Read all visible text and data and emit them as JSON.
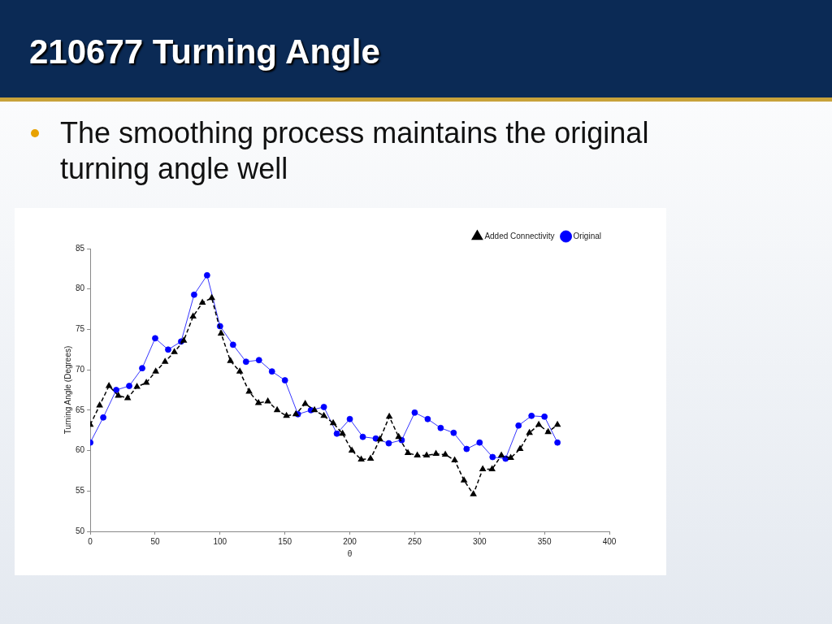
{
  "chart_data": {
    "type": "line",
    "title": "210677 Turning Angle",
    "subtitle": "The smoothing process maintains the original turning angle well",
    "xlabel": "θ",
    "ylabel": "Turning Angle (Degrees)",
    "xlim": [
      0,
      400
    ],
    "xticks": [
      0,
      50,
      100,
      150,
      200,
      250,
      300,
      350,
      400
    ],
    "ylim": [
      50,
      85
    ],
    "yticks": [
      50,
      55,
      60,
      65,
      70,
      75,
      80,
      85
    ],
    "grid": false,
    "legend": "top right",
    "series": [
      {
        "name": "Added Connectivity",
        "color": "#000000",
        "marker": "triangle",
        "line_style": "dashed",
        "x": [
          0,
          7.2,
          14.4,
          21.6,
          28.8,
          36,
          43.2,
          50.4,
          57.6,
          64.8,
          72,
          79.2,
          86.4,
          93.6,
          100.8,
          108,
          115.2,
          122.4,
          129.6,
          136.8,
          144,
          151.2,
          158.4,
          165.6,
          172.8,
          180,
          187.2,
          194.4,
          201.6,
          208.8,
          216,
          223.2,
          230.4,
          237.6,
          244.8,
          252,
          259.2,
          266.4,
          273.6,
          280.8,
          288,
          295.2,
          302.4,
          309.6,
          316.8,
          324,
          331.2,
          338.4,
          345.6,
          352.8,
          360
        ],
        "values": [
          63.2,
          65.6,
          68.0,
          66.8,
          66.5,
          67.9,
          68.4,
          69.8,
          71.0,
          72.2,
          73.6,
          76.6,
          78.3,
          78.9,
          74.5,
          71.1,
          69.8,
          67.3,
          65.9,
          66.1,
          65.0,
          64.3,
          64.5,
          65.8,
          65.0,
          64.3,
          63.4,
          62.1,
          60.0,
          58.9,
          59.0,
          61.4,
          64.2,
          61.7,
          59.7,
          59.4,
          59.4,
          59.6,
          59.5,
          58.8,
          56.3,
          54.6,
          57.7,
          57.7,
          59.4,
          59.1,
          60.2,
          62.2,
          63.2,
          62.3,
          63.2
        ]
      },
      {
        "name": "Original",
        "color": "#0000ff",
        "marker": "circle",
        "line_style": "solid",
        "x": [
          0,
          10,
          20,
          30,
          40,
          50,
          60,
          70,
          80,
          90,
          100,
          110,
          120,
          130,
          140,
          150,
          160,
          170,
          180,
          190,
          200,
          210,
          220,
          230,
          240,
          250,
          260,
          270,
          280,
          290,
          300,
          310,
          320,
          330,
          340,
          350,
          360
        ],
        "values": [
          61.0,
          64.1,
          67.5,
          68.0,
          70.2,
          73.9,
          72.5,
          73.5,
          79.3,
          81.7,
          75.4,
          73.1,
          71.0,
          71.2,
          69.8,
          68.7,
          64.5,
          65.0,
          65.4,
          62.1,
          63.9,
          61.7,
          61.5,
          60.9,
          61.3,
          64.7,
          63.9,
          62.8,
          62.2,
          60.2,
          61.0,
          59.2,
          59.0,
          63.1,
          64.3,
          64.2,
          61.0
        ]
      }
    ]
  }
}
